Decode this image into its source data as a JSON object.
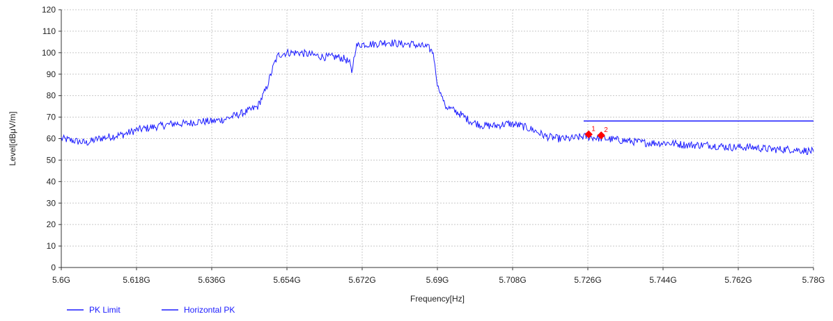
{
  "chart_data": {
    "type": "line",
    "xlabel": "Frequency[Hz]",
    "ylabel": "Level[dBμV/m]",
    "xlim": [
      5.6,
      5.78
    ],
    "ylim": [
      0,
      120
    ],
    "x_ticks": [
      5.6,
      5.618,
      5.636,
      5.654,
      5.672,
      5.69,
      5.708,
      5.726,
      5.744,
      5.762,
      5.78
    ],
    "x_tick_labels": [
      "5.6G",
      "5.618G",
      "5.636G",
      "5.654G",
      "5.672G",
      "5.69G",
      "5.708G",
      "5.726G",
      "5.744G",
      "5.762G",
      "5.78G"
    ],
    "y_ticks": [
      0,
      10,
      20,
      30,
      40,
      50,
      60,
      70,
      80,
      90,
      100,
      110,
      120
    ],
    "y_tick_labels": [
      "0",
      "10",
      "20",
      "30",
      "40",
      "50",
      "60",
      "70",
      "80",
      "90",
      "100",
      "110",
      "120"
    ],
    "grid": true,
    "legend_position": "bottom-left",
    "series": [
      {
        "name": "PK Limit",
        "color": "#1a1aff",
        "x": [
          5.725,
          5.78
        ],
        "y": [
          68.2,
          68.2
        ]
      },
      {
        "name": "Horizontal PK",
        "color": "#1a1aff",
        "x": [
          5.6,
          5.603,
          5.606,
          5.609,
          5.612,
          5.615,
          5.618,
          5.621,
          5.624,
          5.627,
          5.63,
          5.633,
          5.636,
          5.639,
          5.642,
          5.645,
          5.647,
          5.648,
          5.649,
          5.65,
          5.651,
          5.652,
          5.654,
          5.657,
          5.66,
          5.663,
          5.666,
          5.668,
          5.669,
          5.6695,
          5.67,
          5.6705,
          5.672,
          5.675,
          5.678,
          5.681,
          5.684,
          5.686,
          5.687,
          5.688,
          5.689,
          5.69,
          5.692,
          5.695,
          5.698,
          5.701,
          5.704,
          5.707,
          5.71,
          5.713,
          5.716,
          5.719,
          5.722,
          5.725,
          5.73,
          5.735,
          5.74,
          5.745,
          5.75,
          5.755,
          5.76,
          5.765,
          5.77,
          5.775,
          5.78
        ],
        "y": [
          60,
          59,
          58,
          60,
          61,
          62,
          64,
          65,
          66,
          67,
          67,
          68,
          68,
          69,
          71,
          73,
          75,
          79,
          83,
          89,
          95,
          99,
          100,
          100,
          99,
          98,
          98,
          97,
          95,
          91,
          97,
          103,
          104,
          104,
          105,
          104,
          104,
          103,
          103,
          102,
          100,
          85,
          75,
          72,
          68,
          66,
          66,
          67,
          66,
          64,
          61,
          60,
          60,
          61,
          60,
          59,
          58,
          58,
          57,
          57,
          56,
          56,
          55,
          55,
          54
        ]
      }
    ],
    "markers": [
      {
        "label": "1",
        "x": 5.7262,
        "y": 62,
        "color": "#ff0000"
      },
      {
        "label": "2",
        "x": 5.7292,
        "y": 61.5,
        "color": "#ff0000"
      }
    ]
  }
}
